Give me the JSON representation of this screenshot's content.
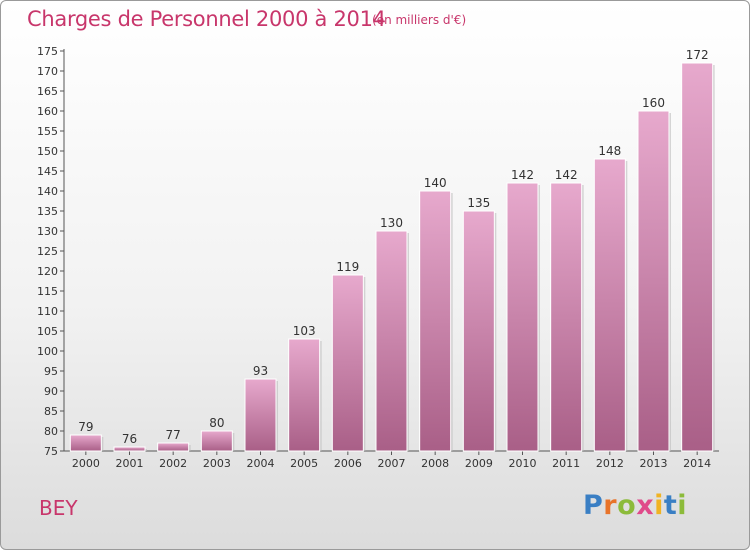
{
  "header": {
    "title": "Charges de Personnel 2000 à 2014",
    "subtitle": "(en milliers d'€)"
  },
  "footer": {
    "commune": "BEY",
    "logo_text": "Proxiti"
  },
  "colors": {
    "title": "#c8366b",
    "bar_top": "#e7a9cd",
    "bar_bottom": "#a95f87",
    "label": "#333333"
  },
  "chart_data": {
    "type": "bar",
    "title": "Charges de Personnel 2000 à 2014",
    "subtitle": "(en milliers d'€)",
    "xlabel": "",
    "ylabel": "",
    "categories": [
      "2000",
      "2001",
      "2002",
      "2003",
      "2004",
      "2005",
      "2006",
      "2007",
      "2008",
      "2009",
      "2010",
      "2011",
      "2012",
      "2013",
      "2014"
    ],
    "values": [
      79,
      76,
      77,
      80,
      93,
      103,
      119,
      130,
      140,
      135,
      142,
      142,
      148,
      160,
      172
    ],
    "ylim": [
      75,
      175
    ],
    "yticks": [
      75,
      80,
      85,
      90,
      95,
      100,
      105,
      110,
      115,
      120,
      125,
      130,
      135,
      140,
      145,
      150,
      155,
      160,
      165,
      170,
      175
    ],
    "grid": false,
    "data_labels": true
  }
}
